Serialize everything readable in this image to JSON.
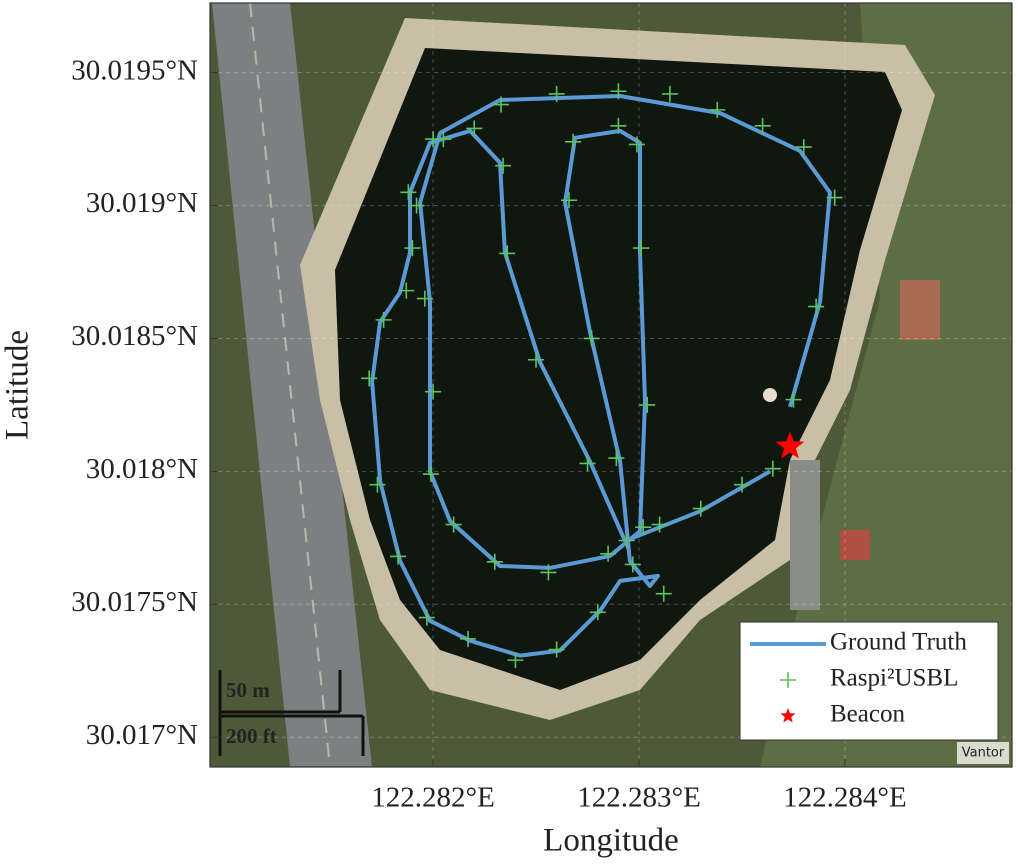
{
  "chart_data": {
    "type": "line",
    "xlabel": "Longitude",
    "ylabel": "Latitude",
    "xlim": [
      122.280917,
      122.284811
    ],
    "ylim": [
      30.016888,
      30.019762
    ],
    "xticks": [
      {
        "value": 122.282,
        "label": "122.282°E"
      },
      {
        "value": 122.283,
        "label": "122.283°E"
      },
      {
        "value": 122.284,
        "label": "122.284°E"
      }
    ],
    "yticks": [
      {
        "value": 30.017,
        "label": "30.017°N"
      },
      {
        "value": 30.0175,
        "label": "30.0175°N"
      },
      {
        "value": 30.018,
        "label": "30.018°N"
      },
      {
        "value": 30.0185,
        "label": "30.0185°N"
      },
      {
        "value": 30.019,
        "label": "30.019°N"
      },
      {
        "value": 30.0195,
        "label": "30.0195°N"
      }
    ],
    "grid": true,
    "legend": "lower right",
    "annotations": [
      "50 m",
      "200 ft",
      "Vantor"
    ],
    "series": [
      {
        "name": "Ground Truth",
        "type": "line",
        "color": "#5b9bd5",
        "x": [
          122.283733,
          122.283879,
          122.283927,
          122.283781,
          122.283393,
          122.282908,
          122.282325,
          122.282034,
          122.281937,
          122.281985,
          122.281985,
          122.282083,
          122.282325,
          122.282568,
          122.282859,
          122.283005,
          122.283029,
          122.283005,
          122.283005,
          122.282908,
          122.282689,
          122.282641,
          122.282762,
          122.282908,
          122.282956,
          122.283053,
          122.283092,
          122.282908,
          122.282811,
          122.282616,
          122.282422,
          122.28218,
          122.281985,
          122.28184,
          122.281743,
          122.281704,
          122.281743,
          122.28184,
          122.281888,
          122.281888,
          122.281985,
          122.28218,
          122.282325,
          122.282349,
          122.282519,
          122.282762,
          122.282932,
          122.283053,
          122.283296,
          122.283636
        ],
        "y": [
          30.018243,
          30.018637,
          30.019049,
          30.019206,
          30.019348,
          30.019412,
          30.019397,
          30.019273,
          30.019011,
          30.018637,
          30.018,
          30.017813,
          30.017644,
          30.017637,
          30.017682,
          30.017775,
          30.018262,
          30.018824,
          30.019236,
          30.019281,
          30.019255,
          30.019011,
          30.018524,
          30.018037,
          30.017663,
          30.017569,
          30.017607,
          30.017588,
          30.017476,
          30.017326,
          30.017307,
          30.017363,
          30.017438,
          30.017663,
          30.017963,
          30.018337,
          30.018562,
          30.018674,
          30.018824,
          30.019049,
          30.019236,
          30.019281,
          30.019161,
          30.018824,
          30.018412,
          30.018037,
          30.017738,
          30.017775,
          30.01785,
          30.018
        ]
      },
      {
        "name": "Raspi²USBL",
        "type": "scatter",
        "marker": "plus",
        "color": "#5cc45c",
        "x": [
          122.28375,
          122.28386,
          122.28395,
          122.2838,
          122.2836,
          122.28338,
          122.28315,
          122.2829,
          122.2826,
          122.28233,
          122.28205,
          122.28192,
          122.28196,
          122.282,
          122.28199,
          122.2821,
          122.2823,
          122.28256,
          122.28285,
          122.28302,
          122.28304,
          122.28301,
          122.28299,
          122.2829,
          122.28268,
          122.28266,
          122.28277,
          122.28289,
          122.28297,
          122.28312,
          122.2828,
          122.2826,
          122.2824,
          122.28217,
          122.28197,
          122.28183,
          122.28173,
          122.28169,
          122.28176,
          122.28187,
          122.2819,
          122.28188,
          122.282,
          122.2822,
          122.28234,
          122.28236,
          122.2825,
          122.28275,
          122.28294,
          122.2831,
          122.2833,
          122.2835,
          122.28365
        ],
        "y": [
          30.01827,
          30.01862,
          30.01903,
          30.01922,
          30.0193,
          30.01936,
          30.01942,
          30.01943,
          30.01942,
          30.01938,
          30.01925,
          30.019,
          30.01865,
          30.0183,
          30.01799,
          30.0178,
          30.01766,
          30.01762,
          30.01769,
          30.01779,
          30.01825,
          30.01884,
          30.01923,
          30.0193,
          30.01924,
          30.01902,
          30.0185,
          30.01805,
          30.01765,
          30.01754,
          30.01747,
          30.01733,
          30.01729,
          30.01737,
          30.01745,
          30.01768,
          30.01795,
          30.01835,
          30.01857,
          30.01868,
          30.01884,
          30.01905,
          30.01925,
          30.01929,
          30.01915,
          30.01882,
          30.01842,
          30.01803,
          30.01774,
          30.0178,
          30.01786,
          30.01795,
          30.01801
        ]
      },
      {
        "name": "Beacon",
        "type": "scatter",
        "marker": "star",
        "color": "#ff0000",
        "x": [
          122.283733
        ],
        "y": [
          30.018094
        ]
      }
    ]
  }
}
